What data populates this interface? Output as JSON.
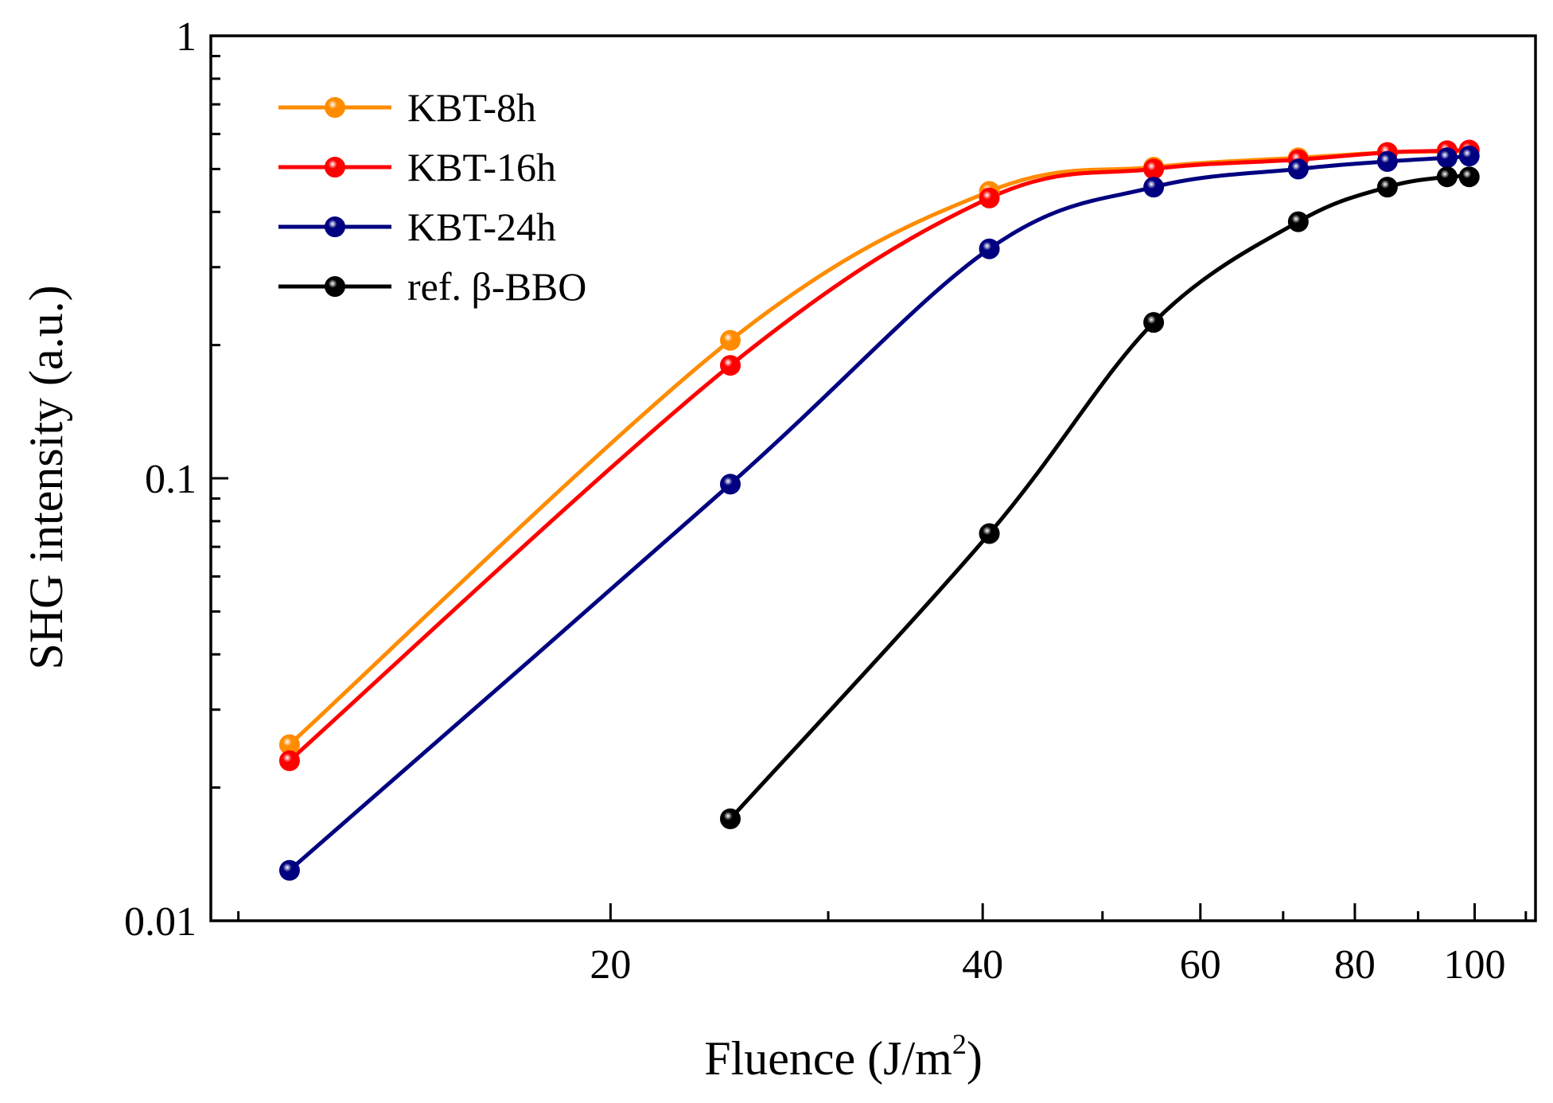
{
  "chart_data": {
    "type": "line",
    "xlabel": "Fluence (J/m",
    "xlabel_sup": "2",
    "xlabel_close": ")",
    "ylabel": "SHG intensity (a.u.)",
    "xscale": "log",
    "yscale": "log",
    "xlim": [
      9.5,
      112
    ],
    "ylim": [
      0.01,
      1
    ],
    "x_ticks": [
      20,
      40,
      60,
      80,
      100
    ],
    "x_tick_labels": [
      "20",
      "40",
      "60",
      "80",
      "100"
    ],
    "y_ticks": [
      0.01,
      0.1,
      1
    ],
    "y_tick_labels": [
      "0.01",
      "0.1",
      "1"
    ],
    "legend_position": "top-left",
    "grid": false,
    "series": [
      {
        "name": "KBT-8h",
        "color": "#ff8c00",
        "x": [
          11,
          25,
          40.5,
          55,
          72,
          85,
          95,
          99
        ],
        "y": [
          0.025,
          0.205,
          0.445,
          0.505,
          0.53,
          0.545,
          0.548,
          0.55
        ]
      },
      {
        "name": "KBT-16h",
        "color": "#ff0000",
        "x": [
          11,
          25,
          40.5,
          55,
          72,
          85,
          95,
          99
        ],
        "y": [
          0.023,
          0.18,
          0.43,
          0.5,
          0.525,
          0.545,
          0.55,
          0.552
        ]
      },
      {
        "name": "KBT-24h",
        "color": "#000080",
        "x": [
          11,
          25,
          40.5,
          55,
          72,
          85,
          95,
          99
        ],
        "y": [
          0.013,
          0.097,
          0.33,
          0.455,
          0.5,
          0.52,
          0.53,
          0.535
        ]
      },
      {
        "name": "ref. β-BBO",
        "color": "#000000",
        "x": [
          25,
          40.5,
          55,
          72,
          85,
          95,
          99
        ],
        "y": [
          0.017,
          0.075,
          0.225,
          0.38,
          0.455,
          0.48,
          0.48
        ]
      }
    ]
  }
}
